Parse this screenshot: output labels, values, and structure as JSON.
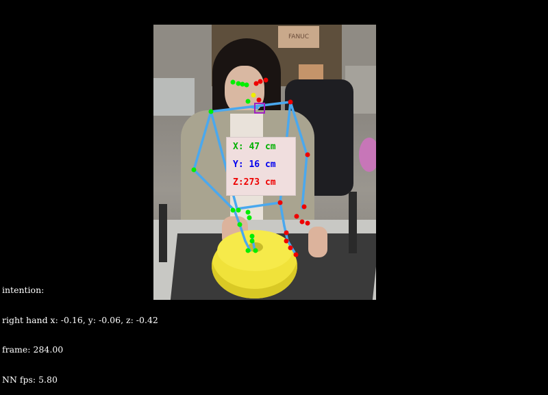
{
  "readout": {
    "x_text": "X: 47 cm",
    "y_text": "Y: 16 cm",
    "z_text": "Z:273 cm",
    "x_color": "#00b000",
    "y_color": "#0000ee",
    "z_color": "#ee0000"
  },
  "hud": {
    "line1": "intention:",
    "line2": "right hand x: -0.16, y: -0.06, z: -0.42",
    "line3": "frame: 284.00",
    "line4": "NN fps: 5.80"
  },
  "scene": {
    "box_label": "FANUC"
  },
  "colors": {
    "skeleton": "#4aa8ee",
    "left_keypoints": "#00ee00",
    "right_keypoints": "#ee0000",
    "target_marker": "#a020c0",
    "nose_point": "#eeee00"
  }
}
